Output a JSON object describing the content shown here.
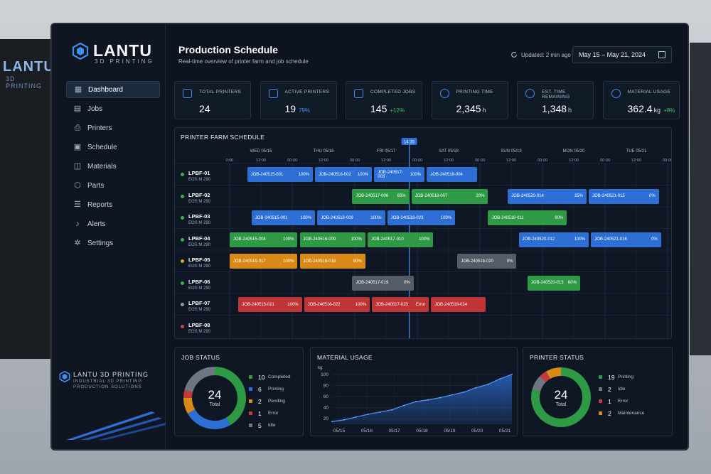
{
  "background": {
    "brand": "LANTU",
    "brand_sub": "3D PRINTING"
  },
  "app": {
    "logo_text": "LANTU",
    "logo_sub": "3D PRINTING",
    "footer_title": "LANTU 3D PRINTING",
    "footer_line1": "INDUSTRIAL 3D PRINTING",
    "footer_line2": "PRODUCTION SOLUTIONS"
  },
  "nav": [
    {
      "label": "Dashboard",
      "icon": "dashboard-icon",
      "active": true
    },
    {
      "label": "Jobs",
      "icon": "jobs-icon"
    },
    {
      "label": "Printers",
      "icon": "printer-icon"
    },
    {
      "label": "Schedule",
      "icon": "calendar-icon"
    },
    {
      "label": "Materials",
      "icon": "materials-icon"
    },
    {
      "label": "Parts",
      "icon": "parts-icon"
    },
    {
      "label": "Reports",
      "icon": "reports-icon"
    },
    {
      "label": "Alerts",
      "icon": "bell-icon"
    },
    {
      "label": "Settings",
      "icon": "gear-icon"
    }
  ],
  "header": {
    "title": "Production Schedule",
    "subtitle": "Real-time overview of printer farm and job schedule",
    "updated": "Updated: 2 min ago",
    "date_range": "May 15  –  May 21, 2024"
  },
  "kpis": [
    {
      "label": "TOTAL PRINTERS",
      "value": "24",
      "unit": "",
      "delta": ""
    },
    {
      "label": "ACTIVE PRINTERS",
      "value": "19",
      "unit": "",
      "delta": "79%",
      "delta_color": "#3f8ef0"
    },
    {
      "label": "COMPLETED JOBS",
      "value": "145",
      "unit": "",
      "delta": "+12%",
      "delta_color": "#35c25a"
    },
    {
      "label": "PRINTING TIME",
      "value": "2,345",
      "unit": "h",
      "delta": ""
    },
    {
      "label": "EST. TIME REMAINING",
      "value": "1,348",
      "unit": "h",
      "delta": ""
    },
    {
      "label": "MATERIAL USAGE",
      "value": "362.4",
      "unit": "kg",
      "delta": "+8%",
      "delta_color": "#35c25a"
    }
  ],
  "schedule": {
    "title": "PRINTER FARM SCHEDULE",
    "now_label": "14:35",
    "now_pos": 0.41,
    "days": [
      "WED 05/15",
      "THU 05/16",
      "FRI 05/17",
      "SAT 05/18",
      "SUN 05/19",
      "MON 05/20",
      "TUE 05/21"
    ],
    "hours": [
      "0:00",
      "12:00",
      "00:00",
      "12:00",
      "00:00",
      "12:00",
      "00:00",
      "12:00",
      "00:00",
      "12:00",
      "00:00",
      "12:00",
      "00:00",
      "12:00",
      "00:00"
    ],
    "printers": [
      {
        "name": "LPBF-01",
        "model": "EOS M 290",
        "status": "#35b24a",
        "jobs": [
          {
            "id": "JOB-240515-001",
            "pct": "100%",
            "color": "blue",
            "s": 0.04,
            "e": 0.19
          },
          {
            "id": "JOB-240516-002",
            "pct": "100%",
            "color": "blue",
            "s": 0.195,
            "e": 0.325
          },
          {
            "id": "JOB-240517-003",
            "pct": "100%",
            "color": "blue",
            "s": 0.33,
            "e": 0.445
          },
          {
            "id": "JOB-240518-004",
            "pct": "",
            "color": "blue",
            "s": 0.45,
            "e": 0.565
          }
        ]
      },
      {
        "name": "LPBF-02",
        "model": "EOS M 290",
        "status": "#35b24a",
        "jobs": [
          {
            "id": "JOB-240517-006",
            "pct": "65%",
            "color": "green",
            "s": 0.28,
            "e": 0.41
          },
          {
            "id": "JOB-240518-007",
            "pct": "20%",
            "color": "green",
            "s": 0.415,
            "e": 0.59
          },
          {
            "id": "JOB-240520-014",
            "pct": "25%",
            "color": "blue",
            "s": 0.635,
            "e": 0.815
          },
          {
            "id": "JOB-240521-015",
            "pct": "0%",
            "color": "blue",
            "s": 0.82,
            "e": 0.98
          }
        ]
      },
      {
        "name": "LPBF-03",
        "model": "EOS M 290",
        "status": "#35b24a",
        "jobs": [
          {
            "id": "JOB-240515-001",
            "pct": "100%",
            "color": "blue",
            "s": 0.05,
            "e": 0.195
          },
          {
            "id": "JOB-240516-009",
            "pct": "100%",
            "color": "blue",
            "s": 0.2,
            "e": 0.355
          },
          {
            "id": "JOB-240518-023",
            "pct": "100%",
            "color": "blue",
            "s": 0.36,
            "e": 0.515
          },
          {
            "id": "JOB-240519-011",
            "pct": "90%",
            "color": "green",
            "s": 0.59,
            "e": 0.77
          }
        ]
      },
      {
        "name": "LPBF-04",
        "model": "EOS M 290",
        "status": "#35b24a",
        "jobs": [
          {
            "id": "JOB-240515-008",
            "pct": "100%",
            "color": "green",
            "s": 0.0,
            "e": 0.155
          },
          {
            "id": "JOB-240516-009",
            "pct": "100%",
            "color": "green",
            "s": 0.16,
            "e": 0.31
          },
          {
            "id": "JOB-240517-010",
            "pct": "100%",
            "color": "green",
            "s": 0.315,
            "e": 0.465
          },
          {
            "id": "JOB-240520-012",
            "pct": "100%",
            "color": "blue",
            "s": 0.66,
            "e": 0.82
          },
          {
            "id": "JOB-240521-016",
            "pct": "0%",
            "color": "blue",
            "s": 0.825,
            "e": 0.985
          }
        ]
      },
      {
        "name": "LPBF-05",
        "model": "EOS M 290",
        "status": "#e0a11b",
        "jobs": [
          {
            "id": "JOB-240515-017",
            "pct": "100%",
            "color": "orange",
            "s": 0.0,
            "e": 0.155
          },
          {
            "id": "JOB-240516-018",
            "pct": "80%",
            "color": "orange",
            "s": 0.16,
            "e": 0.31
          },
          {
            "id": "JOB-240518-020",
            "pct": "0%",
            "color": "gray",
            "s": 0.52,
            "e": 0.655
          }
        ]
      },
      {
        "name": "LPBF-06",
        "model": "EOS M 290",
        "status": "#35b24a",
        "jobs": [
          {
            "id": "JOB-240517-019",
            "pct": "0%",
            "color": "gray",
            "s": 0.28,
            "e": 0.42
          },
          {
            "id": "JOB-240520-013",
            "pct": "60%",
            "color": "green",
            "s": 0.68,
            "e": 0.8
          }
        ]
      },
      {
        "name": "LPBF-07",
        "model": "EOS M 290",
        "status": "#8f98a3",
        "jobs": [
          {
            "id": "JOB-240515-021",
            "pct": "100%",
            "color": "red",
            "s": 0.02,
            "e": 0.165
          },
          {
            "id": "JOB-240516-022",
            "pct": "100%",
            "color": "red",
            "s": 0.17,
            "e": 0.32
          },
          {
            "id": "JOB-240517-023",
            "pct": "Error",
            "color": "red",
            "s": 0.325,
            "e": 0.455
          },
          {
            "id": "JOB-240518-024",
            "pct": "",
            "color": "red",
            "s": 0.46,
            "e": 0.585
          }
        ]
      },
      {
        "name": "LPBF-08",
        "model": "EOS M 290",
        "status": "#d64040",
        "jobs": []
      }
    ]
  },
  "job_status": {
    "title": "JOB STATUS",
    "total": "24",
    "total_label": "Total",
    "items": [
      {
        "n": "10",
        "label": "Completed",
        "color": "#2f9a45",
        "v": 10
      },
      {
        "n": "6",
        "label": "Printing",
        "color": "#2e6fd6",
        "v": 6
      },
      {
        "n": "2",
        "label": "Pending",
        "color": "#d98a16",
        "v": 2
      },
      {
        "n": "1",
        "label": "Error",
        "color": "#c43a3a",
        "v": 1
      },
      {
        "n": "5",
        "label": "Idle",
        "color": "#6e7681",
        "v": 5
      }
    ]
  },
  "material": {
    "title": "MATERIAL USAGE",
    "ylabel": "kg",
    "yticks": [
      "100",
      "80",
      "60",
      "40",
      "20"
    ],
    "xticks": [
      "05/15",
      "05/16",
      "05/17",
      "05/18",
      "05/19",
      "05/20",
      "05/21"
    ]
  },
  "chart_data": {
    "type": "area",
    "title": "MATERIAL USAGE",
    "xlabel": "",
    "ylabel": "kg",
    "ylim": [
      10,
      105
    ],
    "x": [
      "05/15",
      "05/15",
      "05/16",
      "05/16",
      "05/16",
      "05/17",
      "05/17",
      "05/17",
      "05/18",
      "05/18",
      "05/19",
      "05/19",
      "05/20",
      "05/20",
      "05/21",
      "05/21"
    ],
    "values": [
      15,
      18,
      23,
      28,
      32,
      36,
      44,
      51,
      54,
      58,
      63,
      68,
      76,
      82,
      92,
      100
    ],
    "grid": true
  },
  "printer_status": {
    "title": "PRINTER STATUS",
    "total": "24",
    "total_label": "Total",
    "items": [
      {
        "n": "19",
        "label": "Printing",
        "color": "#2f9a45",
        "v": 19
      },
      {
        "n": "2",
        "label": "Idle",
        "color": "#6e7681",
        "v": 2
      },
      {
        "n": "1",
        "label": "Error",
        "color": "#c43a3a",
        "v": 1
      },
      {
        "n": "2",
        "label": "Maintenance",
        "color": "#d98a16",
        "v": 2
      }
    ]
  }
}
